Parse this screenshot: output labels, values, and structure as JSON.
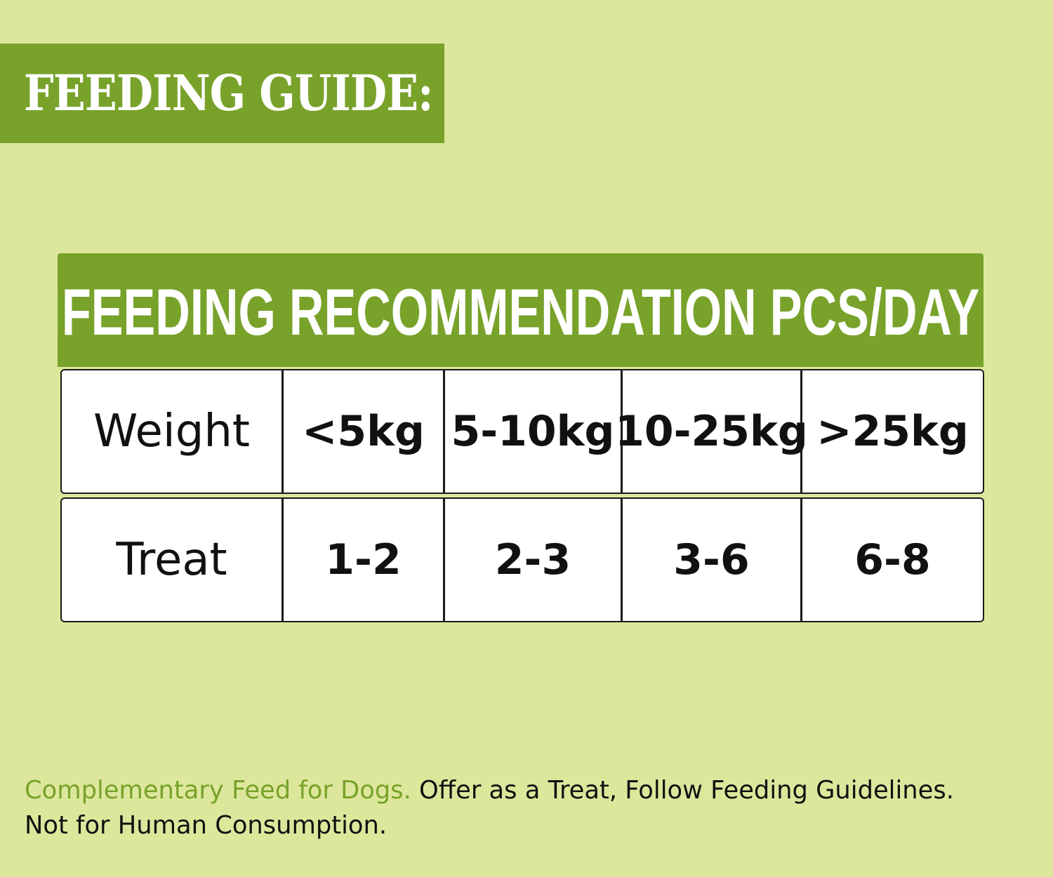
{
  "banner": {
    "title": "FEEDING GUIDE:"
  },
  "table": {
    "header": "FEEDING RECOMMENDATION PCS/DAY",
    "rows": [
      {
        "label": "Weight",
        "values": [
          "<5kg",
          "5-10kg",
          "10-25kg",
          ">25kg"
        ]
      },
      {
        "label": "Treat",
        "values": [
          "1-2",
          "2-3",
          "3-6",
          "6-8"
        ]
      }
    ]
  },
  "footer": {
    "highlight": "Complementary Feed for Dogs.",
    "line1_rest": " Offer as a Treat, Follow Feeding Guidelines.",
    "line2": "Not for Human Consumption."
  },
  "colors": {
    "background": "#dde79c",
    "accent_green": "#78a22a",
    "table_cell": "#ffffff",
    "text": "#111111"
  }
}
